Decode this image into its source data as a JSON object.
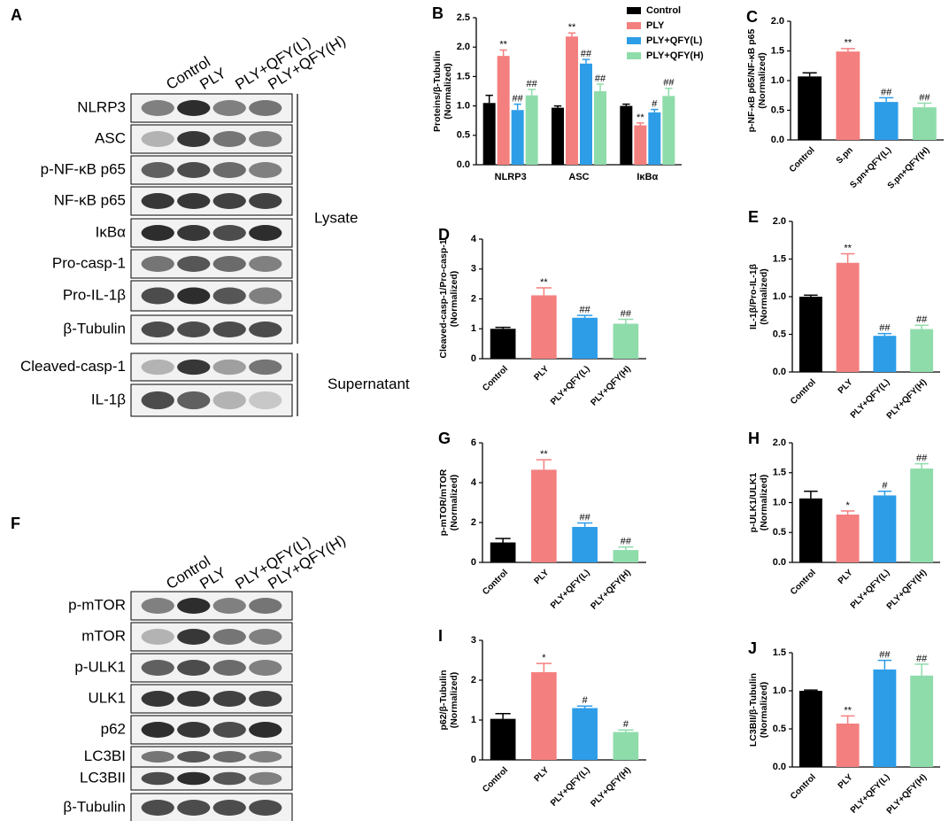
{
  "blots": [
    {
      "label": "A",
      "columns": [
        "Control",
        "PLY",
        "PLY+QFY(L)",
        "PLY+QFY(H)"
      ],
      "rows": [
        "NLRP3",
        "ASC",
        "p-NF-κB p65",
        "NF-κB p65",
        "IκBα",
        "Pro-casp-1",
        "Pro-IL-1β",
        "β-Tubulin",
        "Cleaved-casp-1",
        "IL-1β"
      ],
      "groups": [
        "Lysate",
        "Supernatant"
      ]
    },
    {
      "label": "F",
      "columns": [
        "Control",
        "PLY",
        "PLY+QFY(L)",
        "PLY+QFY(H)"
      ],
      "rows": [
        "p-mTOR",
        "mTOR",
        "p-ULK1",
        "ULK1",
        "p62",
        "LC3BI",
        "LC3BII",
        "β-Tubulin"
      ]
    }
  ],
  "chart_data": [
    {
      "type": "grouped-bar",
      "label": "B",
      "ylabel": [
        "Proteins/β-Tubulin",
        "(Normalized)"
      ],
      "categories": [
        "NLRP3",
        "ASC",
        "IκBα"
      ],
      "series": [
        {
          "name": "Control",
          "color": "#000000",
          "values": [
            1.05,
            0.97,
            1.0
          ],
          "errors": [
            0.13,
            0.03,
            0.03
          ],
          "annotations": [
            null,
            null,
            null
          ]
        },
        {
          "name": "PLY",
          "color": "#f47f7f",
          "values": [
            1.85,
            2.18,
            0.67
          ],
          "errors": [
            0.1,
            0.06,
            0.04
          ],
          "annotations": [
            "**",
            "**",
            "**"
          ]
        },
        {
          "name": "PLY+QFY(L)",
          "color": "#2d9de8",
          "values": [
            0.93,
            1.72,
            0.89
          ],
          "errors": [
            0.1,
            0.07,
            0.05
          ],
          "annotations": [
            "##",
            "##",
            "#"
          ]
        },
        {
          "name": "PLY+QFY(H)",
          "color": "#8fdcab",
          "values": [
            1.18,
            1.25,
            1.17
          ],
          "errors": [
            0.1,
            0.12,
            0.13
          ],
          "annotations": [
            "##",
            "##",
            "##"
          ]
        }
      ],
      "ylim": [
        0,
        2.5
      ],
      "yticks": [
        {
          "value": 0,
          "label": "0.0"
        },
        0.5,
        {
          "value": 1,
          "label": "1.0"
        },
        1.5,
        {
          "value": 2,
          "label": "2.0"
        },
        2.5
      ],
      "legend": "top-right"
    },
    {
      "type": "bar",
      "label": "C",
      "ylabel": [
        "p-NF-κB p65/NF-κB p65",
        "(Normalized)"
      ],
      "categories": [
        "Control",
        "S.pn",
        "S.pn+QFY(L)",
        "S.pn+QFY(H)"
      ],
      "values": [
        1.07,
        1.49,
        0.64,
        0.55
      ],
      "errors": [
        0.06,
        0.05,
        0.07,
        0.07
      ],
      "annotations": [
        null,
        "**",
        "##",
        "##"
      ],
      "colors": [
        "#000000",
        "#f47f7f",
        "#2d9de8",
        "#8fdcab"
      ],
      "ylim": [
        0,
        2
      ],
      "yticks": [
        {
          "value": 0,
          "label": "0.0"
        },
        0.5,
        {
          "value": 1,
          "label": "1.0"
        },
        1.5,
        {
          "value": 2,
          "label": "2.0"
        }
      ]
    },
    {
      "type": "bar",
      "label": "D",
      "ylabel": [
        "Cleaved-casp-1/Pro-casp-1",
        "(Normalized)"
      ],
      "categories": [
        "Control",
        "PLY",
        "PLY+QFY(L)",
        "PLY+QFY(H)"
      ],
      "values": [
        1.0,
        2.12,
        1.37,
        1.17
      ],
      "errors": [
        0.05,
        0.25,
        0.08,
        0.15
      ],
      "annotations": [
        null,
        "**",
        "##",
        "##"
      ],
      "colors": [
        "#000000",
        "#f47f7f",
        "#2d9de8",
        "#8fdcab"
      ],
      "ylim": [
        0,
        4
      ],
      "yticks": [
        0,
        1,
        2,
        3,
        4
      ]
    },
    {
      "type": "bar",
      "label": "E",
      "ylabel": [
        "IL-1β/Pro-IL-1β",
        "(Normalized)"
      ],
      "categories": [
        "Control",
        "PLY",
        "PLY+QFY(L)",
        "PLY+QFY(H)"
      ],
      "values": [
        1.0,
        1.45,
        0.48,
        0.57
      ],
      "errors": [
        0.02,
        0.12,
        0.03,
        0.05
      ],
      "annotations": [
        null,
        "**",
        "##",
        "##"
      ],
      "colors": [
        "#000000",
        "#f47f7f",
        "#2d9de8",
        "#8fdcab"
      ],
      "ylim": [
        0,
        2
      ],
      "yticks": [
        {
          "value": 0,
          "label": "0.0"
        },
        0.5,
        {
          "value": 1,
          "label": "1.0"
        },
        1.5,
        {
          "value": 2,
          "label": "2.0"
        }
      ]
    },
    {
      "type": "bar",
      "label": "G",
      "ylabel": [
        "p-mTOR/mTOR",
        "(Normalized)"
      ],
      "categories": [
        "Control",
        "PLY",
        "PLY+QFY(L)",
        "PLY+QFY(H)"
      ],
      "values": [
        1.0,
        4.65,
        1.78,
        0.62
      ],
      "errors": [
        0.2,
        0.5,
        0.2,
        0.15
      ],
      "annotations": [
        null,
        "**",
        "##",
        "##"
      ],
      "colors": [
        "#000000",
        "#f47f7f",
        "#2d9de8",
        "#8fdcab"
      ],
      "ylim": [
        0,
        6
      ],
      "yticks": [
        0,
        2,
        4,
        6
      ]
    },
    {
      "type": "bar",
      "label": "H",
      "ylabel": [
        "p-ULK1/ULK1",
        "(Normalized)"
      ],
      "categories": [
        "Control",
        "PLY",
        "PLY+QFY(L)",
        "PLY+QFY(H)"
      ],
      "values": [
        1.07,
        0.8,
        1.12,
        1.57
      ],
      "errors": [
        0.12,
        0.06,
        0.07,
        0.08
      ],
      "annotations": [
        null,
        "*",
        "#",
        "##"
      ],
      "colors": [
        "#000000",
        "#f47f7f",
        "#2d9de8",
        "#8fdcab"
      ],
      "ylim": [
        0,
        2
      ],
      "yticks": [
        {
          "value": 0,
          "label": "0.0"
        },
        0.5,
        {
          "value": 1,
          "label": "1.0"
        },
        1.5,
        {
          "value": 2,
          "label": "2.0"
        }
      ]
    },
    {
      "type": "bar",
      "label": "I",
      "ylabel": [
        "p62/β-Tubulin",
        "(Normalized)"
      ],
      "categories": [
        "Control",
        "PLY",
        "PLY+QFY(L)",
        "PLY+QFY(H)"
      ],
      "values": [
        1.03,
        2.2,
        1.3,
        0.7
      ],
      "errors": [
        0.13,
        0.22,
        0.05,
        0.05
      ],
      "annotations": [
        null,
        "*",
        "#",
        "#"
      ],
      "colors": [
        "#000000",
        "#f47f7f",
        "#2d9de8",
        "#8fdcab"
      ],
      "ylim": [
        0,
        3
      ],
      "yticks": [
        0,
        1,
        2,
        3
      ]
    },
    {
      "type": "bar",
      "label": "J",
      "ylabel": [
        "LC3BII/β-Tubulin",
        "(Normalized)"
      ],
      "categories": [
        "Control",
        "PLY",
        "PLY+QFY(L)",
        "PLY+QFY(H)"
      ],
      "values": [
        1.0,
        0.57,
        1.28,
        1.2
      ],
      "errors": [
        0.01,
        0.1,
        0.12,
        0.15
      ],
      "annotations": [
        null,
        "**",
        "##",
        "##"
      ],
      "colors": [
        "#000000",
        "#f47f7f",
        "#2d9de8",
        "#8fdcab"
      ],
      "ylim": [
        0,
        1.5
      ],
      "yticks": [
        {
          "value": 0,
          "label": "0.0"
        },
        0.5,
        {
          "value": 1,
          "label": "1.0"
        },
        1.5
      ]
    }
  ]
}
